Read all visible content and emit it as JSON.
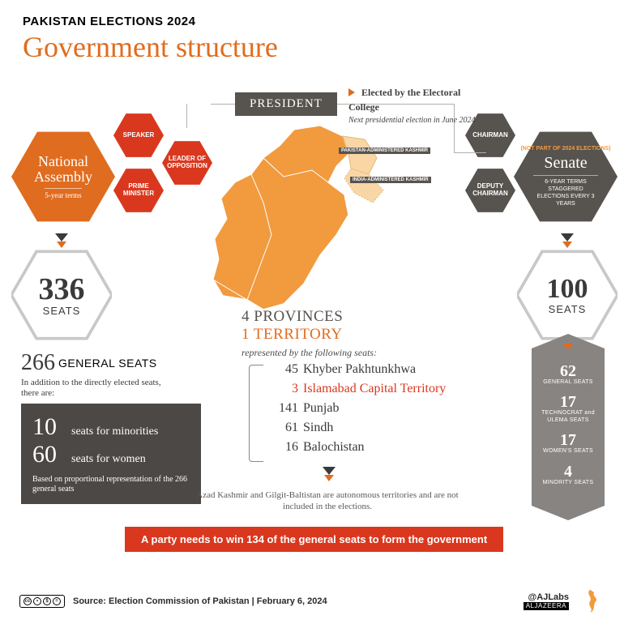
{
  "colors": {
    "orange": "#e06c1f",
    "dark_orange": "#d9381e",
    "red": "#d9381e",
    "grey_hex": "#57534e",
    "grey_box": "#4b4845",
    "grey_col": "#878482",
    "map_fill": "#f29a3e",
    "map_light": "#f9d6a5",
    "text_dark": "#3a3a3a",
    "white": "#ffffff"
  },
  "header": {
    "kicker": "PAKISTAN ELECTIONS 2024",
    "title": "Government structure"
  },
  "president": {
    "label": "PRESIDENT",
    "note_bold": "Elected by the Electoral College",
    "note_italic": "Next presidential election in June 2024"
  },
  "national_assembly": {
    "title": "National Assembly",
    "sub": "5-year terms",
    "roles": {
      "speaker": "SPEAKER",
      "leader": "LEADER OF OPPOSITION",
      "pm": "PRIME MINISTER"
    },
    "total_seats": "336",
    "total_seats_label": "SEATS",
    "general_seats": "266",
    "general_seats_label": "GENERAL SEATS",
    "addition_note": "In addition to the directly elected seats, there are:",
    "reserved": {
      "minorities_n": "10",
      "minorities_l": "seats for minorities",
      "women_n": "60",
      "women_l": "seats for women",
      "note": "Based on proportional representation of the 266 general seats"
    }
  },
  "senate": {
    "not_part": "(NOT PART OF 2024 ELECTIONS)",
    "title": "Senate",
    "sub": "6-YEAR TERMS STAGGERED ELECTIONS EVERY 3 YEARS",
    "roles": {
      "chairman": "CHAIRMAN",
      "deputy": "DEPUTY CHAIRMAN"
    },
    "total_seats": "100",
    "total_seats_label": "SEATS",
    "breakdown": [
      {
        "n": "62",
        "l": "GENERAL SEATS"
      },
      {
        "n": "17",
        "l": "TECHNOCRAT and ULEMA SEATS"
      },
      {
        "n": "17",
        "l": "WOMEN'S SEATS"
      },
      {
        "n": "4",
        "l": "MINORITY SEATS"
      }
    ]
  },
  "provinces": {
    "line1_a": "4 PROVINCES",
    "line1_b": "1 TERRITORY",
    "represented": "represented by the following seats:",
    "seats": [
      {
        "n": "45",
        "name": "Khyber Pakhtunkhwa",
        "territory": false
      },
      {
        "n": "3",
        "name": "Islamabad Capital Territory",
        "territory": true
      },
      {
        "n": "141",
        "name": "Punjab",
        "territory": false
      },
      {
        "n": "61",
        "name": "Sindh",
        "territory": false
      },
      {
        "n": "16",
        "name": "Balochistan",
        "territory": false
      }
    ]
  },
  "map_labels": {
    "pak_kashmir": "PAKISTAN-ADMINISTERED KASHMIR",
    "ind_kashmir": "INDIA-ADMINISTERED KASHMIR"
  },
  "autonomous_note": "Azad Kashmir and Gilgit-Baltistan are autonomous territories and are not included in the elections.",
  "win_banner": "A party needs to win 134 of the general seats to form the government",
  "footer": {
    "source": "Source: Election Commission of Pakistan   |   February 6, 2024",
    "handle": "@AJLabs",
    "brand": "ALJAZEERA"
  }
}
